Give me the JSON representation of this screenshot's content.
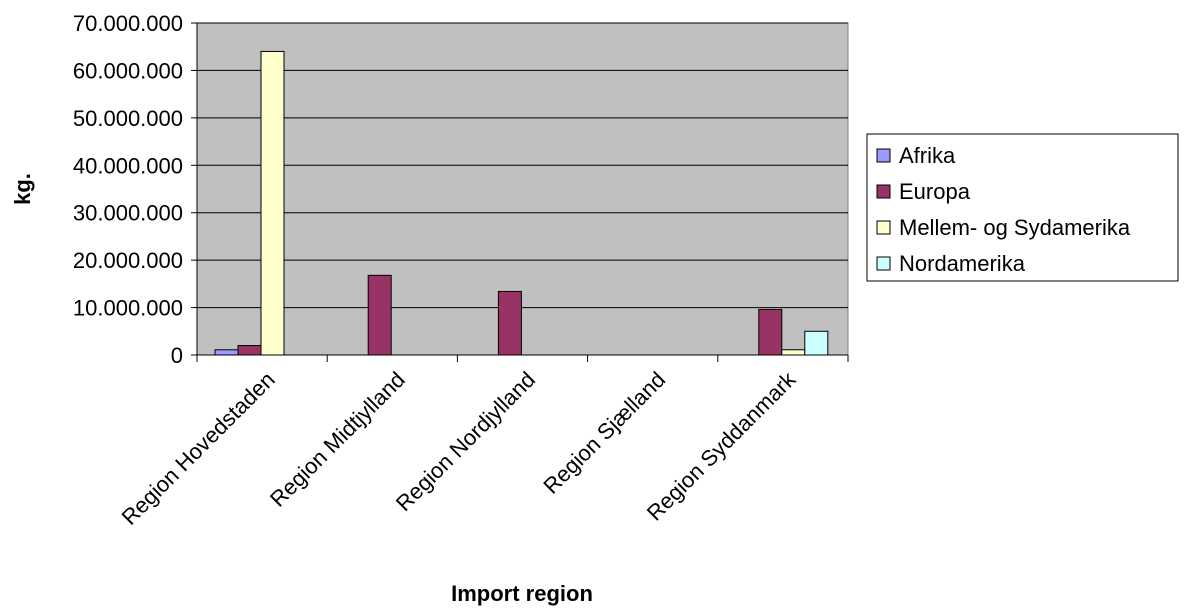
{
  "chart_data": {
    "type": "bar",
    "title": "",
    "xlabel": "Import region",
    "ylabel": "kg.",
    "ylim": [
      0,
      70000000
    ],
    "yticks": [
      0,
      10000000,
      20000000,
      30000000,
      40000000,
      50000000,
      60000000,
      70000000
    ],
    "ytick_labels": [
      "0",
      "10.000.000",
      "20.000.000",
      "30.000.000",
      "40.000.000",
      "50.000.000",
      "60.000.000",
      "70.000.000"
    ],
    "categories": [
      "Region Hovedstaden",
      "Region Midtjylland",
      "Region Nordjylland",
      "Region Sjælland",
      "Region Syddanmark"
    ],
    "series": [
      {
        "name": "Afrika",
        "color": "#9999ff",
        "values": [
          1100000,
          0,
          0,
          0,
          0
        ]
      },
      {
        "name": "Europa",
        "color": "#993366",
        "values": [
          2000000,
          16800000,
          13400000,
          0,
          9600000
        ]
      },
      {
        "name": "Mellem- og Sydamerika",
        "color": "#ffffcc",
        "values": [
          64000000,
          0,
          0,
          0,
          1100000
        ]
      },
      {
        "name": "Nordamerika",
        "color": "#ccffff",
        "values": [
          0,
          0,
          0,
          0,
          5000000
        ]
      }
    ],
    "legend_position": "right",
    "plot_background": "#c0c0c0",
    "grid": true
  }
}
